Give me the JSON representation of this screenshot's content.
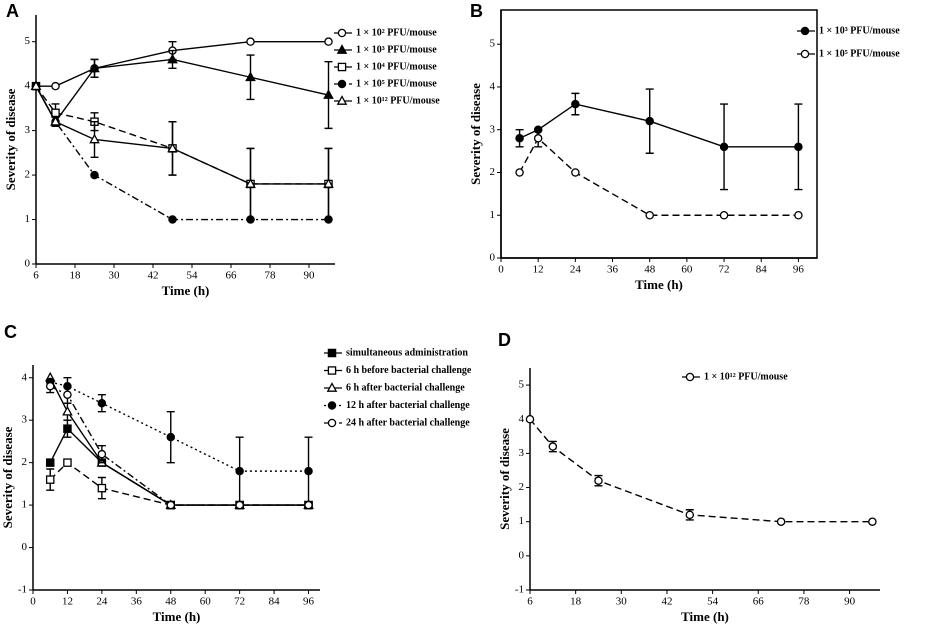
{
  "chart_data": [
    {
      "type": "line",
      "panel": "A",
      "xlabel": "Time (h)",
      "ylabel": "Severity of disease",
      "x": [
        6,
        12,
        24,
        48,
        72,
        96
      ],
      "xlim": [
        6,
        98
      ],
      "xticks": [
        6,
        18,
        30,
        42,
        54,
        66,
        78,
        90
      ],
      "ylim": [
        0,
        5.6
      ],
      "yticks": [
        0,
        1,
        2,
        3,
        4,
        5
      ],
      "frame": false,
      "series": [
        {
          "name": "1 × 10² PFU/mouse",
          "color": "#000",
          "marker": "open-circle",
          "dash": "solid",
          "values": [
            4,
            4,
            4.4,
            4.8,
            5,
            5
          ],
          "errors": [
            0,
            0,
            0.2,
            0.2,
            0,
            0
          ]
        },
        {
          "name": "1 × 10³ PFU/mouse",
          "color": "#000",
          "marker": "filled-triangle",
          "dash": "solid",
          "values": [
            4,
            3.2,
            4.4,
            4.6,
            4.2,
            3.8
          ],
          "errors": [
            0,
            0.1,
            0.2,
            0.2,
            0.5,
            0.75
          ]
        },
        {
          "name": "1 × 10⁴ PFU/mouse",
          "color": "#000",
          "marker": "open-square",
          "dash": "dashed",
          "values": [
            4,
            3.4,
            3.2,
            2.6,
            1.8,
            1.8
          ],
          "errors": [
            0,
            0.2,
            0.2,
            0.6,
            0.8,
            0.8
          ]
        },
        {
          "name": "1 × 10⁵ PFU/mouse",
          "color": "#000",
          "marker": "filled-circle",
          "dash": "dashdot",
          "values": [
            4,
            3.2,
            2,
            1,
            1,
            1
          ],
          "errors": [
            0,
            0,
            0,
            0,
            0,
            0
          ]
        },
        {
          "name": "1 × 10¹² PFU/mouse",
          "color": "#000",
          "marker": "open-triangle",
          "dash": "solid",
          "values": [
            4,
            3.2,
            2.8,
            2.6,
            1.8,
            1.8
          ],
          "errors": [
            0,
            0.1,
            0.4,
            0.6,
            0.8,
            0.8
          ]
        }
      ]
    },
    {
      "type": "line",
      "panel": "B",
      "xlabel": "Time (h)",
      "ylabel": "Severity of disease",
      "x": [
        6,
        12,
        24,
        48,
        72,
        96
      ],
      "xlim": [
        0,
        102
      ],
      "xticks": [
        0,
        12,
        24,
        36,
        48,
        60,
        72,
        84,
        96
      ],
      "ylim": [
        0,
        5.8
      ],
      "yticks": [
        0,
        1,
        2,
        3,
        4,
        5
      ],
      "frame": true,
      "series": [
        {
          "name": "1 × 10³ PFU/mouse",
          "color": "#000",
          "marker": "filled-circle",
          "dash": "solid",
          "values": [
            2.8,
            3,
            3.6,
            3.2,
            2.6,
            2.6
          ],
          "errors": [
            0.2,
            0,
            0.25,
            0.75,
            1,
            1
          ]
        },
        {
          "name": "1 × 10⁵ PFU/mouse",
          "color": "#000",
          "marker": "open-circle",
          "dash": "dashed",
          "values": [
            2,
            2.8,
            2,
            1,
            1,
            1
          ],
          "errors": [
            0,
            0.2,
            0,
            0,
            0,
            0
          ]
        }
      ]
    },
    {
      "type": "line",
      "panel": "C",
      "xlabel": "Time (h)",
      "ylabel": "Severity of disease",
      "x": [
        6,
        12,
        24,
        48,
        72,
        96
      ],
      "xlim": [
        0,
        100
      ],
      "xticks": [
        0,
        12,
        24,
        36,
        48,
        60,
        72,
        84,
        96
      ],
      "ylim": [
        -1,
        4.3
      ],
      "yticks": [
        -1,
        0,
        1,
        2,
        3,
        4
      ],
      "frame": false,
      "series": [
        {
          "name": "simultaneous administration",
          "color": "#000",
          "marker": "filled-square",
          "dash": "solid",
          "values": [
            2,
            2.8,
            2,
            1,
            1,
            1
          ],
          "errors": [
            0,
            0.2,
            0,
            0,
            0,
            0
          ]
        },
        {
          "name": "6 h before bacterial challenge",
          "color": "#000",
          "marker": "open-square",
          "dash": "dashed",
          "values": [
            1.6,
            2,
            1.4,
            1,
            1,
            1
          ],
          "errors": [
            0.25,
            0,
            0.25,
            0,
            0,
            0
          ]
        },
        {
          "name": "6 h after bacterial challenge",
          "color": "#000",
          "marker": "open-triangle",
          "dash": "solid",
          "values": [
            4,
            3.2,
            2,
            1,
            1,
            1
          ],
          "errors": [
            0,
            0.2,
            0,
            0,
            0,
            0
          ]
        },
        {
          "name": "12 h after bacterial challenge",
          "color": "#000",
          "marker": "filled-circle",
          "dash": "dotted",
          "values": [
            3.9,
            3.8,
            3.4,
            2.6,
            1.8,
            1.8
          ],
          "errors": [
            0,
            0.2,
            0.2,
            0.6,
            0.8,
            0.8
          ]
        },
        {
          "name": "24 h after bacterial challenge",
          "color": "#000",
          "marker": "open-circle",
          "dash": "dashdot",
          "values": [
            3.8,
            3.6,
            2.2,
            1,
            1,
            1
          ],
          "errors": [
            0.15,
            0.2,
            0.2,
            0,
            0,
            0
          ]
        }
      ]
    },
    {
      "type": "line",
      "panel": "D",
      "xlabel": "Time (h)",
      "ylabel": "Severity of disease",
      "x": [
        6,
        12,
        24,
        48,
        72,
        96
      ],
      "xlim": [
        6,
        98
      ],
      "xticks": [
        6,
        18,
        30,
        42,
        54,
        66,
        78,
        90
      ],
      "ylim": [
        -1,
        5.5
      ],
      "yticks": [
        -1,
        0,
        1,
        2,
        3,
        4,
        5
      ],
      "frame": false,
      "series": [
        {
          "name": "1 × 10¹² PFU/mouse",
          "color": "#000",
          "marker": "open-circle",
          "dash": "dashed",
          "values": [
            4,
            3.2,
            2.2,
            1.2,
            1,
            1
          ],
          "errors": [
            0,
            0.15,
            0.15,
            0.15,
            0,
            0
          ]
        }
      ]
    }
  ]
}
